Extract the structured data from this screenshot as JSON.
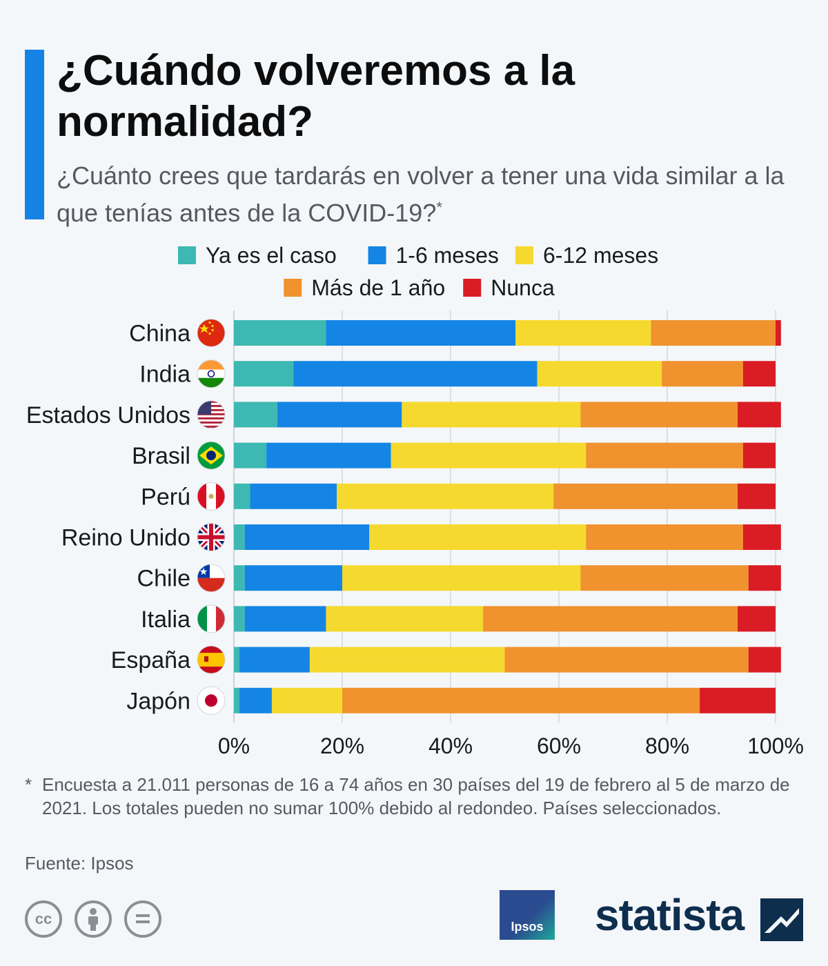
{
  "title": "¿Cuándo volveremos a la normalidad?",
  "subtitle": "¿Cuánto crees que tardarás en volver a tener una vida similar a la que tenías antes de la COVID-19?",
  "subtitle_marker": "*",
  "footnote_marker": "*",
  "footnote": "Encuesta a 21.011 personas de 16 a 74 años en 30 países del 19 de febrero al 5 de marzo de 2021. Los totales pueden no sumar 100% debido al redondeo. Países seleccionados.",
  "source": "Fuente: Ipsos",
  "logos": {
    "ipsos": "Ipsos",
    "statista": "statista"
  },
  "license_icons": [
    "cc-icon",
    "attribution-icon",
    "no-derivatives-icon"
  ],
  "chart_data": {
    "type": "bar",
    "orientation": "horizontal",
    "stacked": true,
    "categories": [
      "China",
      "India",
      "Estados Unidos",
      "Brasil",
      "Perú",
      "Reino Unido",
      "Chile",
      "Italia",
      "España",
      "Japón"
    ],
    "series": [
      {
        "name": "Ya es el caso",
        "color": "#3db8b2",
        "values": [
          17,
          11,
          8,
          6,
          3,
          2,
          2,
          2,
          1,
          1
        ]
      },
      {
        "name": "1-6 meses",
        "color": "#1485e4",
        "values": [
          35,
          45,
          23,
          23,
          16,
          23,
          18,
          15,
          13,
          6
        ]
      },
      {
        "name": "6-12 meses",
        "color": "#f6d92e",
        "values": [
          25,
          23,
          33,
          36,
          40,
          40,
          44,
          29,
          36,
          13
        ]
      },
      {
        "name": "Más de 1 año",
        "color": "#f0922e",
        "values": [
          23,
          15,
          29,
          29,
          34,
          29,
          31,
          47,
          45,
          66
        ]
      },
      {
        "name": "Nunca",
        "color": "#da1c25",
        "values": [
          1,
          6,
          8,
          6,
          7,
          7,
          6,
          7,
          6,
          14
        ]
      }
    ],
    "xlim": [
      0,
      100
    ],
    "xticks": [
      "0%",
      "20%",
      "40%",
      "60%",
      "80%",
      "100%"
    ],
    "grid": true,
    "legend": "top-center",
    "flags": [
      "china-flag-icon",
      "india-flag-icon",
      "usa-flag-icon",
      "brazil-flag-icon",
      "peru-flag-icon",
      "uk-flag-icon",
      "chile-flag-icon",
      "italy-flag-icon",
      "spain-flag-icon",
      "japan-flag-icon"
    ]
  }
}
